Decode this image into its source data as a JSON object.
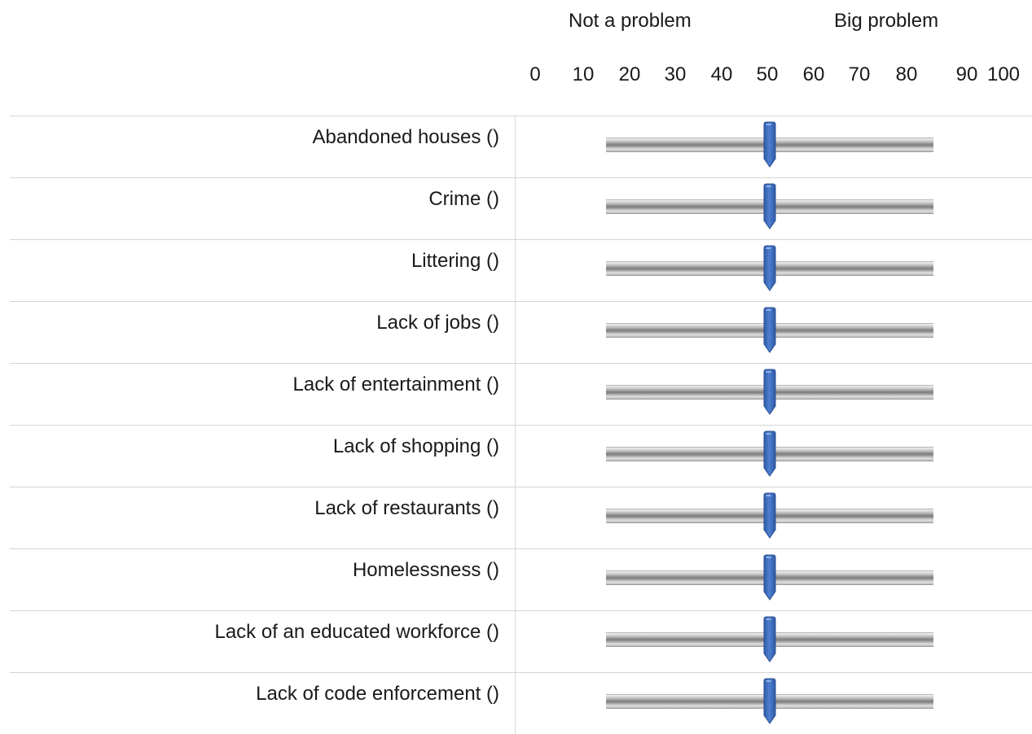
{
  "anchors": {
    "left": "Not a problem",
    "right": "Big problem"
  },
  "scale": {
    "min": 0,
    "max": 100,
    "ticks": [
      "0",
      "10",
      "20",
      "30",
      "40",
      "50",
      "60",
      "70",
      "80",
      "90",
      "100"
    ]
  },
  "items": [
    {
      "label": "Abandoned houses ()",
      "value": 50
    },
    {
      "label": "Crime ()",
      "value": 50
    },
    {
      "label": "Littering ()",
      "value": 50
    },
    {
      "label": "Lack of jobs ()",
      "value": 50
    },
    {
      "label": "Lack of entertainment ()",
      "value": 50
    },
    {
      "label": "Lack of shopping ()",
      "value": 50
    },
    {
      "label": "Lack of restaurants ()",
      "value": 50
    },
    {
      "label": "Homelessness ()",
      "value": 50
    },
    {
      "label": "Lack of an educated workforce ()",
      "value": 50
    },
    {
      "label": "Lack of code enforcement ()",
      "value": 50
    }
  ],
  "colors": {
    "handle": "#4f7fcf",
    "handle_dark": "#2d5aa8",
    "track": "#8c8c8c",
    "divider": "#d4d4d4"
  },
  "icons": {
    "handle": "slider-handle-icon"
  }
}
